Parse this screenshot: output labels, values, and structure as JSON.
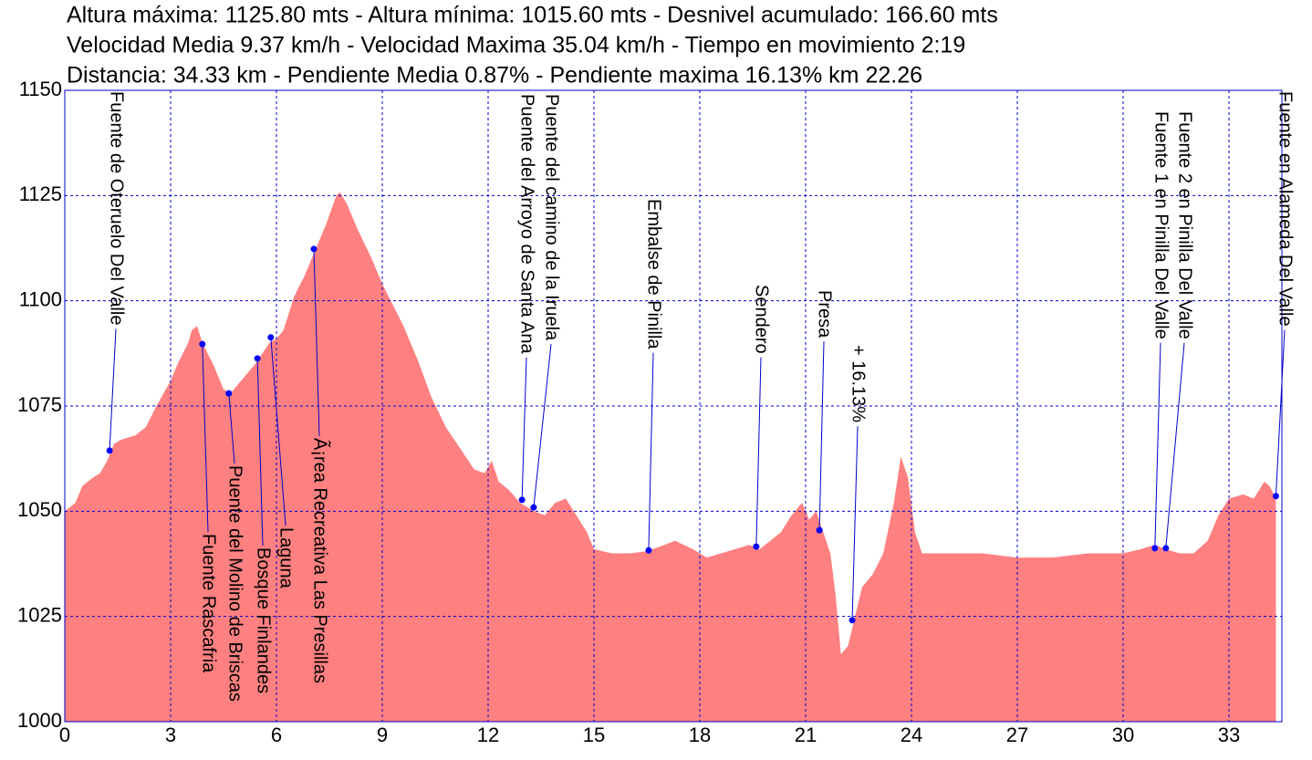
{
  "chart_data": {
    "type": "area",
    "subtitle_lines": [
      "Altura máxima: 1125.80 mts  -  Altura mínima: 1015.60 mts  -  Desnivel acumulado: 166.60 mts",
      "Velocidad Media 9.37 km/h - Velocidad Maxima 35.04 km/h - Tiempo en movimiento 2:19",
      "Distancia: 34.33 km  -  Pendiente Media 0.87%   -  Pendiente maxima 16.13% km 22.26"
    ],
    "x": [
      0,
      0.3,
      0.5,
      0.8,
      1.0,
      1.2,
      1.4,
      1.6,
      2.0,
      2.3,
      2.6,
      3.0,
      3.2,
      3.5,
      3.6,
      3.75,
      3.9,
      4.2,
      4.5,
      4.7,
      5.0,
      5.4,
      5.8,
      6.0,
      6.2,
      6.5,
      6.8,
      7.1,
      7.4,
      7.7,
      7.8,
      8.0,
      8.3,
      8.7,
      9.0,
      9.3,
      9.6,
      10.0,
      10.4,
      10.8,
      11.2,
      11.6,
      11.9,
      12.1,
      12.3,
      12.6,
      12.9,
      13.3,
      13.6,
      13.9,
      14.2,
      14.5,
      14.8,
      15.0,
      15.5,
      16.0,
      16.5,
      17.0,
      17.3,
      17.8,
      18.2,
      18.6,
      19.0,
      19.4,
      19.7,
      20.0,
      20.3,
      20.6,
      20.9,
      21.1,
      21.3,
      21.5,
      21.7,
      21.85,
      22.0,
      22.2,
      22.4,
      22.6,
      22.9,
      23.2,
      23.5,
      23.7,
      23.9,
      24.1,
      24.3,
      25,
      26,
      27,
      28,
      29,
      30,
      30.5,
      30.9,
      31.2,
      31.6,
      32.0,
      32.4,
      32.7,
      33.0,
      33.4,
      33.7,
      34.0,
      34.15,
      34.33
    ],
    "values": [
      1050,
      1052,
      1056,
      1058,
      1059,
      1062,
      1066,
      1067,
      1068,
      1070,
      1075,
      1081,
      1085,
      1090,
      1093,
      1094,
      1090,
      1085,
      1079,
      1078,
      1081,
      1085,
      1090,
      1091,
      1093,
      1101,
      1106,
      1112,
      1118,
      1125,
      1125.8,
      1123,
      1117,
      1110,
      1104,
      1099,
      1094,
      1086,
      1077,
      1070,
      1065,
      1060,
      1059,
      1062,
      1057,
      1055,
      1052,
      1050,
      1049,
      1052,
      1053,
      1049,
      1045,
      1041,
      1040,
      1040,
      1040.5,
      1042,
      1043,
      1041,
      1039,
      1040,
      1041,
      1042,
      1041,
      1043,
      1045,
      1049,
      1052,
      1048,
      1050,
      1045,
      1040,
      1030,
      1016,
      1018,
      1025,
      1032,
      1035,
      1040,
      1052,
      1063,
      1058,
      1045,
      1040,
      1040,
      1040,
      1039,
      1039,
      1040,
      1040,
      1041,
      1042,
      1041,
      1040,
      1040,
      1043,
      1049,
      1053,
      1054,
      1053,
      1057,
      1056,
      1053
    ],
    "color": "#ff8080",
    "xlim": [
      0,
      34.5
    ],
    "ylim": [
      1000,
      1150
    ],
    "xticks": [
      0,
      3,
      6,
      9,
      12,
      15,
      18,
      21,
      24,
      27,
      30,
      33
    ],
    "yticks": [
      1000,
      1025,
      1050,
      1075,
      1100,
      1125,
      1150
    ],
    "grid": true,
    "annotations": [
      {
        "label": "Fuente de Oteruelo Del Valle",
        "x": 1.27,
        "y": 1064.4
      },
      {
        "label": "Fuente Rascafria",
        "x": 3.9,
        "y": 1089.7
      },
      {
        "label": "Puente del Molino de Briscas",
        "x": 4.65,
        "y": 1078.0
      },
      {
        "label": "Bosque Finlandes",
        "x": 5.46,
        "y": 1086.3
      },
      {
        "label": "Laguna",
        "x": 5.84,
        "y": 1091.3
      },
      {
        "label": "Ã¡rea Recreativa Las Presillas",
        "x": 7.06,
        "y": 1112.3
      },
      {
        "label": "Puente del Arroyo de Santa Ana",
        "x": 12.96,
        "y": 1052.7
      },
      {
        "label": "Puente del camino de la Iruela",
        "x": 13.29,
        "y": 1050.9
      },
      {
        "label": "Embalse de Pinilla",
        "x": 16.55,
        "y": 1040.7
      },
      {
        "label": "Sendero",
        "x": 19.6,
        "y": 1041.6
      },
      {
        "label": "Presa",
        "x": 21.39,
        "y": 1045.5
      },
      {
        "label": "+ 16.13%",
        "x": 22.32,
        "y": 1024.1
      },
      {
        "label": "Fuente 1 en Pinilla Del Valle",
        "x": 30.9,
        "y": 1041.2
      },
      {
        "label": "Fuente 2 en Pinilla Del Valle",
        "x": 31.21,
        "y": 1041.2
      },
      {
        "label": "Fuente en Alameda Del Valle",
        "x": 34.33,
        "y": 1053.6
      }
    ]
  }
}
